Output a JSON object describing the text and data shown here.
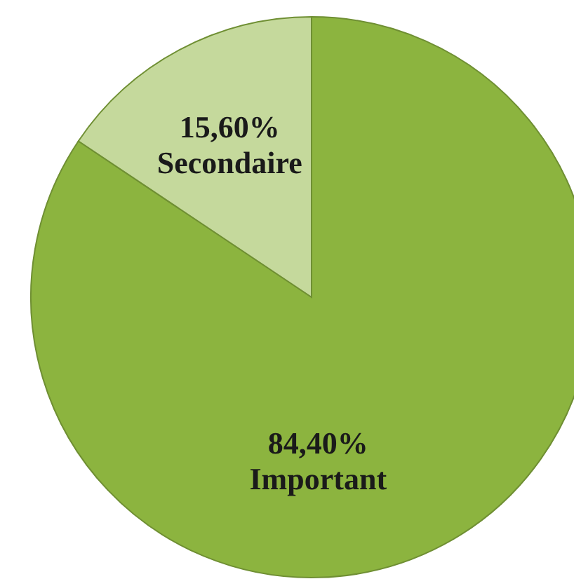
{
  "chart_data": {
    "type": "pie",
    "categories": [
      "Important",
      "Secondaire"
    ],
    "values": [
      84.4,
      15.6
    ],
    "colors": [
      "#8cb43f",
      "#c5d99c"
    ],
    "value_labels": [
      "84,40%",
      "15,60%"
    ]
  }
}
